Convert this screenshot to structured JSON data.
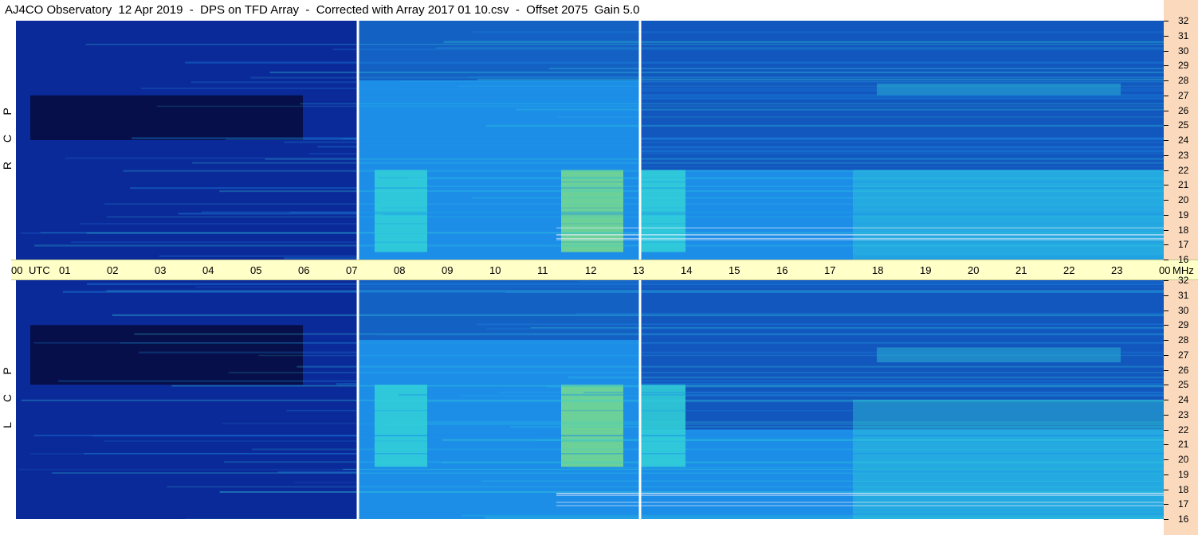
{
  "header": {
    "title": "AJ4CO Observatory  12 Apr 2019  -  DPS on TFD Array  -  Corrected with Array 2017 01 10.csv  -  Offset 2075  Gain 5.0"
  },
  "colors": {
    "background_dark": "#050c40",
    "low": "#0b2a9a",
    "mid": "#1c8ee8",
    "high": "#33d2d8",
    "peak": "#e0e020",
    "axis_band": "#ffffc8",
    "right_strip": "#fbd9bd"
  },
  "chart_data": {
    "type": "heatmap",
    "title": "AJ4CO Observatory  12 Apr 2019  -  DPS on TFD Array  -  Corrected with Array 2017 01 10.csv  -  Offset 2075  Gain 5.0",
    "xlabel": "UTC",
    "ylabel": "MHz",
    "x_ticks": [
      "00",
      "01",
      "02",
      "03",
      "04",
      "05",
      "06",
      "07",
      "08",
      "09",
      "10",
      "11",
      "12",
      "13",
      "14",
      "15",
      "16",
      "17",
      "18",
      "19",
      "20",
      "21",
      "22",
      "23",
      "00"
    ],
    "x_unit_label": "UTC",
    "y_unit_label": "MHz",
    "xlim": [
      0,
      24
    ],
    "ylim": [
      16,
      32
    ],
    "y_ticks": [
      16,
      17,
      18,
      19,
      20,
      21,
      22,
      23,
      24,
      25,
      26,
      27,
      28,
      29,
      30,
      31,
      32
    ],
    "gaps_utc": [
      7.15,
      13.05
    ],
    "panels": [
      {
        "name": "RCP",
        "letters": [
          "R",
          "C",
          "P"
        ],
        "dark_region": {
          "x": [
            0.3,
            6.0
          ],
          "y": [
            24,
            27
          ]
        },
        "bright_blocks": [
          {
            "x": [
              7.5,
              8.6
            ],
            "y": [
              16.5,
              22
            ]
          },
          {
            "x": [
              11.4,
              12.7
            ],
            "y": [
              16.5,
              22
            ]
          },
          {
            "x": [
              13.05,
              14.0
            ],
            "y": [
              16.5,
              22
            ]
          }
        ],
        "features": [
          {
            "x": [
              18.0,
              23.1
            ],
            "y": [
              27,
              27.8
            ]
          },
          {
            "x": [
              17.5,
              24.0
            ],
            "y": [
              16,
              22
            ]
          }
        ]
      },
      {
        "name": "LCP",
        "letters": [
          "L",
          "C",
          "P"
        ],
        "dark_region": {
          "x": [
            0.3,
            6.0
          ],
          "y": [
            25,
            29
          ]
        },
        "bright_blocks": [
          {
            "x": [
              7.5,
              8.6
            ],
            "y": [
              19.5,
              25
            ]
          },
          {
            "x": [
              11.4,
              12.7
            ],
            "y": [
              19.5,
              25
            ]
          },
          {
            "x": [
              13.05,
              14.0
            ],
            "y": [
              19.5,
              25
            ]
          }
        ],
        "features": [
          {
            "x": [
              18.0,
              23.1
            ],
            "y": [
              26.5,
              27.5
            ]
          },
          {
            "x": [
              17.5,
              24.0
            ],
            "y": [
              16,
              24
            ]
          }
        ]
      }
    ]
  }
}
